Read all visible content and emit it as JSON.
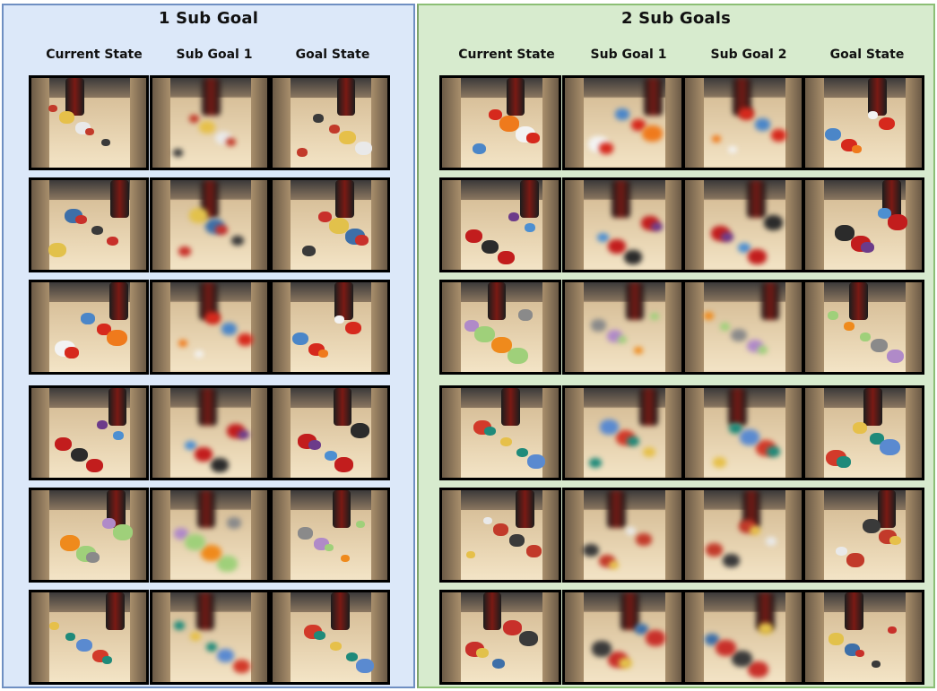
{
  "panels": [
    {
      "title": "1 Sub Goal",
      "columns": [
        "Current State",
        "Sub Goal 1",
        "Goal State"
      ]
    },
    {
      "title": "2 Sub Goals",
      "columns": [
        "Current State",
        "Sub Goal 1",
        "Sub Goal 2",
        "Goal State"
      ]
    }
  ],
  "rows": 6,
  "colors": {
    "panel1_bg": "#dce8f9",
    "panel1_border": "#6f8fc2",
    "panel2_bg": "#d7ebce",
    "panel2_border": "#8cbf75"
  }
}
